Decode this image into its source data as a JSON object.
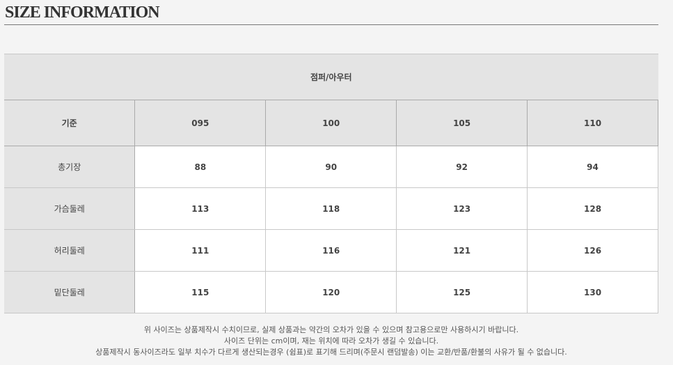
{
  "title": "SIZE INFORMATION",
  "table": {
    "caption": "점퍼/아우터",
    "headers": [
      "기준",
      "095",
      "100",
      "105",
      "110"
    ],
    "rows": [
      {
        "label": "총기장",
        "values": [
          "88",
          "90",
          "92",
          "94"
        ]
      },
      {
        "label": "가슴둘레",
        "values": [
          "113",
          "118",
          "123",
          "128"
        ]
      },
      {
        "label": "허리둘레",
        "values": [
          "111",
          "116",
          "121",
          "126"
        ]
      },
      {
        "label": "밑단둘레",
        "values": [
          "115",
          "120",
          "125",
          "130"
        ]
      }
    ]
  },
  "notes": [
    "위 사이즈는 상품제작시 수치이므로, 실제 상품과는 약간의 오차가 있을 수 있으며 참고용으로만 사용하시기 바랍니다.",
    "사이즈 단위는 cm이며, 재는 위치에 따라 오차가 생길 수 있습니다.",
    "상품제작시 동사이즈라도 일부 치수가 다르게 생산되는경우 (쉼표)로 표기해 드리며(주문시 랜덤발송) 이는 교환/반품/환불의 사유가 될 수 없습니다."
  ]
}
